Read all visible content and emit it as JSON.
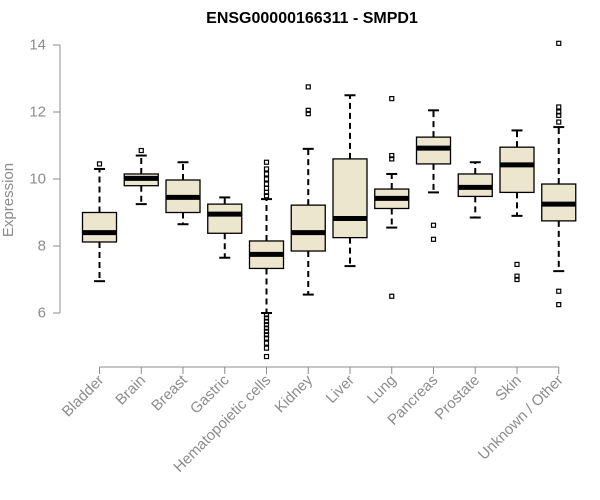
{
  "chart_data": {
    "type": "boxplot",
    "title": "ENSG00000166311 - SMPD1",
    "xlabel": "",
    "ylabel": "Expression",
    "ylim": [
      4.6,
      14.3
    ],
    "yticks": [
      6,
      8,
      10,
      12,
      14
    ],
    "grid": false,
    "legend": "none",
    "colors": {
      "box_fill": "#ede6cf",
      "box_edge": "#000000",
      "axis": "#8c8c8c"
    },
    "categories": [
      "Bladder",
      "Brain",
      "Breast",
      "Gastric",
      "Hematopoietic cells",
      "Kidney",
      "Liver",
      "Lung",
      "Pancreas",
      "Prostate",
      "Skin",
      "Unknown / Other"
    ],
    "boxes": [
      {
        "category": "Bladder",
        "whisker_low": 6.95,
        "q1": 8.12,
        "median": 8.4,
        "q3": 9.0,
        "whisker_high": 10.3,
        "outliers": [
          10.45
        ]
      },
      {
        "category": "Brain",
        "whisker_low": 9.25,
        "q1": 9.8,
        "median": 10.02,
        "q3": 10.15,
        "whisker_high": 10.7,
        "outliers": [
          10.85
        ]
      },
      {
        "category": "Breast",
        "whisker_low": 8.65,
        "q1": 9.0,
        "median": 9.45,
        "q3": 9.97,
        "whisker_high": 10.5,
        "outliers": []
      },
      {
        "category": "Gastric",
        "whisker_low": 7.65,
        "q1": 8.38,
        "median": 8.95,
        "q3": 9.25,
        "whisker_high": 9.45,
        "outliers": []
      },
      {
        "category": "Hematopoietic cells",
        "whisker_low": 6.0,
        "q1": 7.33,
        "median": 7.75,
        "q3": 8.15,
        "whisker_high": 9.4,
        "outliers": [
          4.7,
          4.95,
          5.1,
          5.25,
          5.35,
          5.45,
          5.55,
          5.65,
          5.75,
          5.85,
          5.95,
          9.5,
          9.6,
          9.72,
          9.85,
          10.0,
          10.15,
          10.3,
          10.5
        ]
      },
      {
        "category": "Kidney",
        "whisker_low": 6.55,
        "q1": 7.85,
        "median": 8.4,
        "q3": 9.22,
        "whisker_high": 10.9,
        "outliers": [
          11.95,
          12.05,
          12.75
        ]
      },
      {
        "category": "Liver",
        "whisker_low": 7.4,
        "q1": 8.25,
        "median": 8.82,
        "q3": 10.6,
        "whisker_high": 12.5,
        "outliers": []
      },
      {
        "category": "Lung",
        "whisker_low": 8.55,
        "q1": 9.12,
        "median": 9.42,
        "q3": 9.7,
        "whisker_high": 10.15,
        "outliers": [
          6.5,
          10.6,
          10.7,
          12.4
        ]
      },
      {
        "category": "Pancreas",
        "whisker_low": 9.6,
        "q1": 10.45,
        "median": 10.92,
        "q3": 11.25,
        "whisker_high": 12.05,
        "outliers": [
          8.2,
          8.62
        ]
      },
      {
        "category": "Prostate",
        "whisker_low": 8.85,
        "q1": 9.48,
        "median": 9.75,
        "q3": 10.15,
        "whisker_high": 10.5,
        "outliers": []
      },
      {
        "category": "Skin",
        "whisker_low": 8.9,
        "q1": 9.6,
        "median": 10.42,
        "q3": 10.95,
        "whisker_high": 11.45,
        "outliers": [
          7.0,
          7.1,
          7.45
        ]
      },
      {
        "category": "Unknown / Other",
        "whisker_low": 7.25,
        "q1": 8.75,
        "median": 9.25,
        "q3": 9.85,
        "whisker_high": 11.55,
        "outliers": [
          6.25,
          6.65,
          11.7,
          11.9,
          12.0,
          12.15,
          14.05
        ]
      }
    ]
  }
}
